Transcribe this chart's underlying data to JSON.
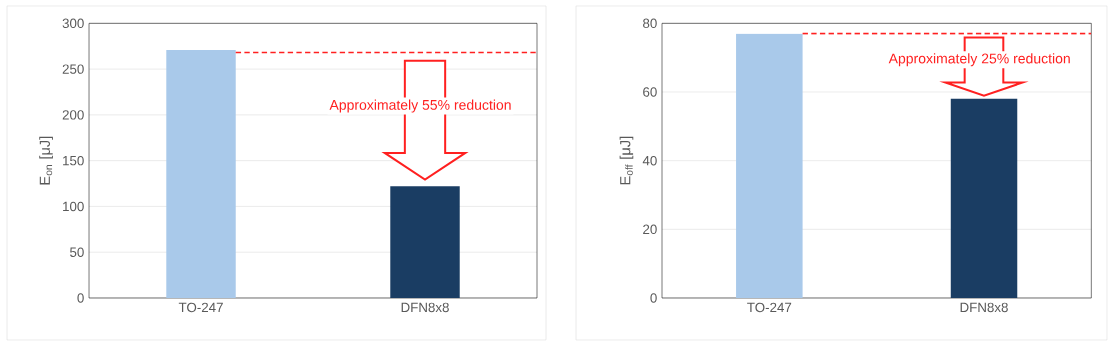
{
  "chart_data": [
    {
      "type": "bar",
      "categories": [
        "TO-247",
        "DFN8x8"
      ],
      "values": [
        271,
        122
      ],
      "colors": [
        "#a9c9ea",
        "#1a3d63"
      ],
      "ylabel": "E$_{on}$ [μJ]",
      "ylim": [
        0,
        300
      ],
      "yticks": [
        0,
        50,
        100,
        150,
        200,
        250,
        300
      ],
      "grid": "y",
      "ref_lines": [
        {
          "axis": "y",
          "value": 268,
          "color": "#ff2020",
          "line_style": "dashed"
        }
      ],
      "annotations": [
        "Approximately 55% reduction"
      ]
    },
    {
      "type": "bar",
      "categories": [
        "TO-247",
        "DFN8x8"
      ],
      "values": [
        77,
        58
      ],
      "colors": [
        "#a9c9ea",
        "#1a3d63"
      ],
      "ylabel": "E$_{off}$ [μJ]",
      "ylim": [
        0,
        80
      ],
      "yticks": [
        0,
        20,
        40,
        60,
        80
      ],
      "grid": "y",
      "ref_lines": [
        {
          "axis": "y",
          "value": 77,
          "color": "#ff2020",
          "line_style": "dashed"
        }
      ],
      "annotations": [
        "Approximately 25% reduction"
      ]
    }
  ]
}
